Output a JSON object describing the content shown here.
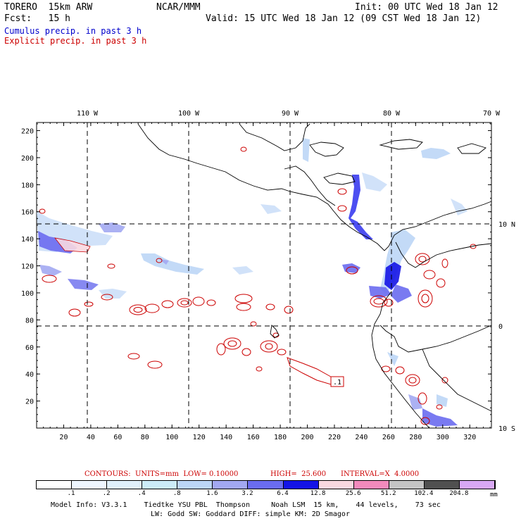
{
  "header": {
    "model": "TORERO  15km ARW",
    "org": "NCAR/MMM",
    "init": "Init: 00 UTC Wed 18 Jan 12",
    "fcst": "Fcst:   15 h",
    "valid": "Valid: 15 UTC Wed 18 Jan 12 (09 CST Wed 18 Jan 12)"
  },
  "fields": {
    "cumulus": "Cumulus precip. in past 3 h",
    "explicit": "Explicit precip. in past 3 h",
    "cumulus_color": "#0000cc",
    "explicit_color": "#cc0000"
  },
  "map": {
    "lon_labels": [
      "110 W",
      "100 W",
      "90 W",
      "80 W",
      "70 W"
    ],
    "lat_labels": [
      "10 N",
      "0",
      "10 S"
    ],
    "x_ticks": [
      "20",
      "40",
      "60",
      "80",
      "100",
      "120",
      "140",
      "160",
      "180",
      "200",
      "220",
      "240",
      "260",
      "280",
      "300",
      "320"
    ],
    "y_ticks": [
      "220",
      "200",
      "180",
      "160",
      "140",
      "120",
      "100",
      "80",
      "60",
      "40",
      "20"
    ],
    "box_label": ".1"
  },
  "contours": {
    "units": "CONTOURS:  UNITS=mm  LOW= 0.10000",
    "high": "HIGH=  25.600",
    "interval": "INTERVAL=X  4.0000"
  },
  "legend": {
    "values": [
      ".1",
      ".2",
      ".4",
      ".8",
      "1.6",
      "3.2",
      "6.4",
      "12.8",
      "25.6",
      "51.2",
      "102.4",
      "204.8"
    ],
    "unit": "mm",
    "colors": [
      "#ffffff",
      "#eef6ff",
      "#e0f0fb",
      "#ccecf8",
      "#bcd6f6",
      "#a2a8f2",
      "#6a6cf0",
      "#1414e6",
      "#f8d8e0",
      "#f28abc",
      "#c4c4c4",
      "#505050",
      "#d8a8f4"
    ]
  },
  "model_info": {
    "line1": "Model Info: V3.3.1    Tiedtke YSU PBL  Thompson     Noah LSM  15 km,    44 levels,    73 sec",
    "line2": "LW: Godd SW: Goddard DIFF: simple KM: 2D Smagor"
  }
}
